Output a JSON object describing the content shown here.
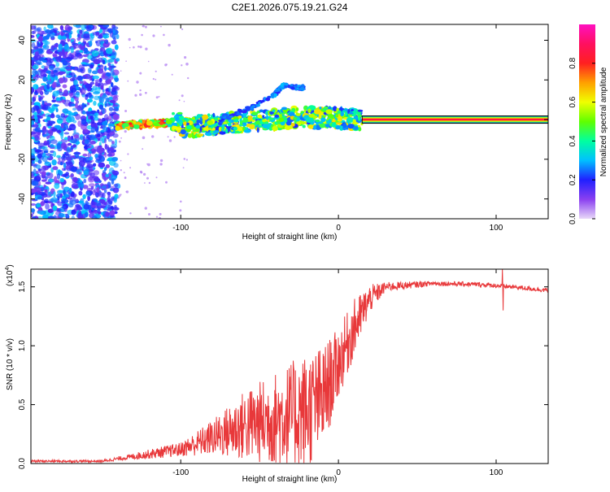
{
  "title": "C2E1.2026.075.19.21.G24",
  "chart_data": [
    {
      "type": "heatmap",
      "name": "spectrogram",
      "xlabel": "Height of straight line (km)",
      "ylabel": "Frequency (Hz)",
      "xlim": [
        -195,
        133
      ],
      "ylim": [
        -50,
        48
      ],
      "xticks": [
        -100,
        0,
        100
      ],
      "yticks": [
        -40,
        -20,
        0,
        20,
        40
      ],
      "colorbar": {
        "label": "Normalized spectral amplitude",
        "range": [
          0,
          1
        ],
        "ticks": [
          0.0,
          0.2,
          0.4,
          0.6,
          0.8
        ],
        "tick_labels": [
          "0.0",
          "0.2",
          "0.4",
          "0.6",
          "0.8"
        ],
        "colors": [
          "#e8d8f8",
          "#8a40f0",
          "#2020ff",
          "#00c0ff",
          "#00ffa0",
          "#60ff00",
          "#f0ff00",
          "#ffa000",
          "#ff2020",
          "#ff1060",
          "#ff10c0"
        ]
      },
      "features": {
        "noise_region_end_km": -140,
        "carrier_start_km": 15,
        "carrier_freq_hz": 0,
        "branch_upper": [
          [
            -75,
            0
          ],
          [
            -55,
            6
          ],
          [
            -40,
            13
          ],
          [
            -35,
            17
          ],
          [
            -22,
            16
          ]
        ]
      }
    },
    {
      "type": "line",
      "name": "snr",
      "xlabel": "Height of straight line (km)",
      "ylabel": "SNR (10 * v/v)",
      "scale_label": "(x10",
      "scale_exp": "4",
      "xlim": [
        -195,
        133
      ],
      "ylim": [
        0,
        1.65
      ],
      "xticks": [
        -100,
        0,
        100
      ],
      "yticks": [
        0.0,
        0.5,
        1.0,
        1.5
      ],
      "ytick_labels": [
        "0.0",
        "0.5",
        "1.0",
        "1.5"
      ],
      "color": "#e8383a",
      "envelope": [
        {
          "x": -195,
          "mean": 0.02,
          "amp": 0.01
        },
        {
          "x": -150,
          "mean": 0.02,
          "amp": 0.01
        },
        {
          "x": -135,
          "mean": 0.05,
          "amp": 0.02
        },
        {
          "x": -120,
          "mean": 0.08,
          "amp": 0.04
        },
        {
          "x": -100,
          "mean": 0.12,
          "amp": 0.06
        },
        {
          "x": -80,
          "mean": 0.22,
          "amp": 0.15
        },
        {
          "x": -60,
          "mean": 0.32,
          "amp": 0.3
        },
        {
          "x": -40,
          "mean": 0.38,
          "amp": 0.4
        },
        {
          "x": -20,
          "mean": 0.45,
          "amp": 0.5
        },
        {
          "x": -10,
          "mean": 0.55,
          "amp": 0.45
        },
        {
          "x": 0,
          "mean": 0.85,
          "amp": 0.3
        },
        {
          "x": 10,
          "mean": 1.15,
          "amp": 0.25
        },
        {
          "x": 20,
          "mean": 1.4,
          "amp": 0.12
        },
        {
          "x": 30,
          "mean": 1.5,
          "amp": 0.04
        },
        {
          "x": 60,
          "mean": 1.53,
          "amp": 0.02
        },
        {
          "x": 90,
          "mean": 1.52,
          "amp": 0.02
        },
        {
          "x": 110,
          "mean": 1.5,
          "amp": 0.02
        },
        {
          "x": 133,
          "mean": 1.47,
          "amp": 0.02
        }
      ],
      "spikes": [
        {
          "x": 104,
          "y": 1.65
        },
        {
          "x": 104.5,
          "y": 1.3
        }
      ]
    }
  ]
}
